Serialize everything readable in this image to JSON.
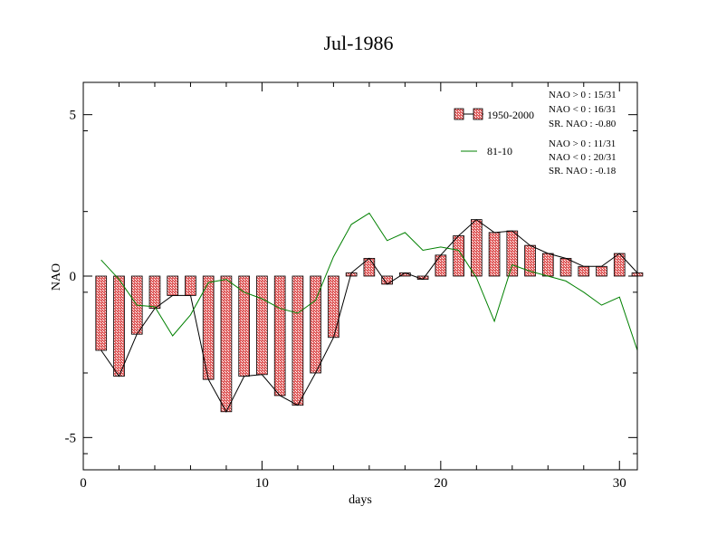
{
  "chart_data": {
    "type": "bar",
    "title": "Jul-1986",
    "xlabel": "days",
    "ylabel": "NAO",
    "xlim": [
      0,
      31
    ],
    "ylim": [
      -6,
      6
    ],
    "xticks": [
      0,
      10,
      20,
      30
    ],
    "yticks": [
      -5,
      0,
      5
    ],
    "xtick_labels": [
      "0",
      "10",
      "20",
      "30"
    ],
    "ytick_labels": [
      "-5",
      "0",
      "5"
    ],
    "grid": false,
    "legend_position": "top-right",
    "x": [
      1,
      2,
      3,
      4,
      5,
      6,
      7,
      8,
      9,
      10,
      11,
      12,
      13,
      14,
      15,
      16,
      17,
      18,
      19,
      20,
      21,
      22,
      23,
      24,
      25,
      26,
      27,
      28,
      29,
      30,
      31
    ],
    "series": [
      {
        "name": "1950-2000",
        "kind": "bar+line",
        "color": "#e06060",
        "line_color": "#000000",
        "values": [
          -2.3,
          -3.1,
          -1.8,
          -1.0,
          -0.6,
          -0.6,
          -3.2,
          -4.2,
          -3.1,
          -3.05,
          -3.7,
          -4.0,
          -3.0,
          -1.9,
          0.1,
          0.55,
          -0.25,
          0.1,
          -0.1,
          0.65,
          1.25,
          1.75,
          1.35,
          1.4,
          0.95,
          0.7,
          0.55,
          0.3,
          0.3,
          0.7,
          0.1
        ]
      },
      {
        "name": "81-10",
        "kind": "line",
        "color": "#008000",
        "values": [
          0.5,
          -0.1,
          -0.9,
          -0.95,
          -1.85,
          -1.2,
          -0.2,
          -0.1,
          -0.5,
          -0.7,
          -1.0,
          -1.15,
          -0.75,
          0.6,
          1.6,
          1.95,
          1.1,
          1.35,
          0.8,
          0.9,
          0.8,
          -0.05,
          -1.4,
          0.35,
          0.15,
          0.0,
          -0.15,
          -0.5,
          -0.9,
          -0.65,
          -2.3
        ]
      }
    ],
    "stats": [
      [
        "NAO > 0 : 15/31",
        "NAO < 0 : 16/31",
        "SR. NAO : -0.80"
      ],
      [
        "NAO > 0 : 11/31",
        "NAO < 0 : 20/31",
        "SR. NAO : -0.18"
      ]
    ]
  }
}
